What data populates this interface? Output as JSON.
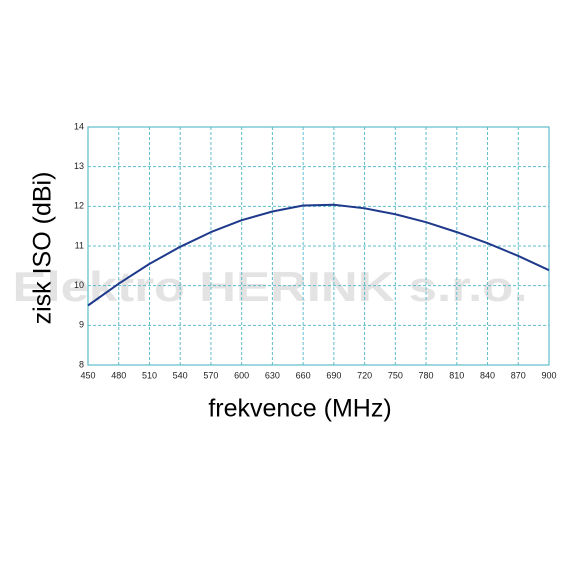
{
  "chart_data": {
    "type": "line",
    "x_label": "frekvence  (MHz)",
    "y_label": "zisk ISO  (dBi)",
    "watermark": "Elektro HERINK s.r.o.",
    "x": [
      450,
      480,
      510,
      540,
      570,
      600,
      630,
      660,
      690,
      720,
      750,
      780,
      810,
      840,
      870,
      900
    ],
    "series": [
      {
        "color": "#1f3a8c",
        "values": [
          9.5,
          10.05,
          10.55,
          10.98,
          11.35,
          11.65,
          11.87,
          12.02,
          12.04,
          11.95,
          11.8,
          11.6,
          11.35,
          11.07,
          10.75,
          10.39
        ]
      }
    ],
    "xlim": [
      450,
      900
    ],
    "xticks": [
      450,
      480,
      510,
      540,
      570,
      600,
      630,
      660,
      690,
      720,
      750,
      780,
      810,
      840,
      870,
      900
    ],
    "ylim": [
      8,
      14
    ],
    "yticks": [
      8,
      9,
      10,
      11,
      12,
      13,
      14
    ],
    "grid": true,
    "grid_color": "#5fbccb"
  }
}
